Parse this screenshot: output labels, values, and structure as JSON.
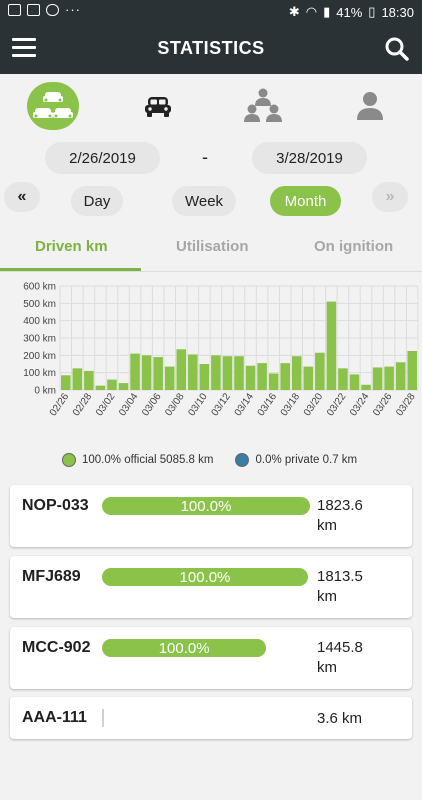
{
  "status_bar": {
    "battery": "41%",
    "time": "18:30"
  },
  "app_bar": {
    "title": "STATISTICS"
  },
  "date_range": {
    "start": "2/26/2019",
    "separator": "-",
    "end": "3/28/2019"
  },
  "period": {
    "prev_label": "«",
    "options": [
      "Day",
      "Week",
      "Month"
    ],
    "selected": "Month",
    "next_label": "»"
  },
  "tabs": [
    {
      "label": "Driven km",
      "active": true
    },
    {
      "label": "Utilisation",
      "active": false
    },
    {
      "label": "On ignition",
      "active": false
    }
  ],
  "chart_data": {
    "type": "bar",
    "categories": [
      "02/26",
      "02/27",
      "02/28",
      "03/01",
      "03/02",
      "03/03",
      "03/04",
      "03/05",
      "03/06",
      "03/07",
      "03/08",
      "03/09",
      "03/10",
      "03/11",
      "03/12",
      "03/13",
      "03/14",
      "03/15",
      "03/16",
      "03/17",
      "03/18",
      "03/19",
      "03/20",
      "03/21",
      "03/22",
      "03/23",
      "03/24",
      "03/25",
      "03/26",
      "03/27",
      "03/28"
    ],
    "values": [
      85,
      125,
      110,
      25,
      60,
      40,
      210,
      200,
      190,
      135,
      235,
      205,
      150,
      200,
      195,
      195,
      140,
      155,
      95,
      155,
      195,
      135,
      215,
      510,
      125,
      90,
      30,
      130,
      135,
      160,
      225
    ],
    "tick_labels": [
      "02/26",
      "02/28",
      "03/02",
      "03/04",
      "03/06",
      "03/08",
      "03/10",
      "03/12",
      "03/14",
      "03/16",
      "03/18",
      "03/20",
      "03/22",
      "03/24",
      "03/26",
      "03/28"
    ],
    "y_ticks": [
      "0 km",
      "100 km",
      "200 km",
      "300 km",
      "400 km",
      "500 km",
      "600 km"
    ],
    "ylim": [
      0,
      600
    ],
    "grid": true,
    "colors": {
      "bar": "#8bc34a",
      "grid": "#dcdcdc"
    }
  },
  "legend": {
    "official_label": "100.0% official 5085.8 km",
    "private_label": "0.0% private 0.7 km",
    "official_color": "#8bc34a",
    "private_color": "#3a7ca5"
  },
  "vehicles": [
    {
      "plate": "NOP-033",
      "percent_label": "100.0%",
      "share": 1.0,
      "km_line1": "1823.6",
      "km_line2": "km"
    },
    {
      "plate": "MFJ689",
      "percent_label": "100.0%",
      "share": 0.99,
      "km_line1": "1813.5",
      "km_line2": "km"
    },
    {
      "plate": "MCC-902",
      "percent_label": "100.0%",
      "share": 0.79,
      "km_line1": "1445.8",
      "km_line2": "km"
    },
    {
      "plate": "AAA-111",
      "percent_label": "",
      "share": 0.0,
      "km_line1": "3.6 km",
      "km_line2": ""
    }
  ],
  "icons": [
    "menu-icon",
    "search-icon",
    "fleet-cars-icon",
    "car-icon",
    "group-icon",
    "person-icon"
  ]
}
